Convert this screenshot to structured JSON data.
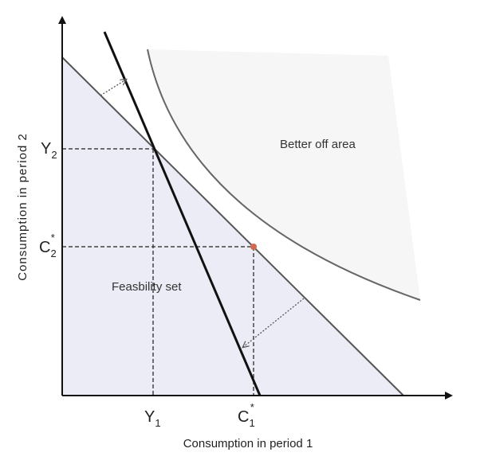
{
  "axes": {
    "x_title": "Consumption in period 1",
    "y_title": "Consumption in period 2"
  },
  "ticks": {
    "y2": "Y",
    "y2_sub": "2",
    "c2": "C",
    "c2_sub": "2",
    "c2_sup": "*",
    "y1": "Y",
    "y1_sub": "1",
    "c1": "C",
    "c1_sub": "1",
    "c1_sup": "*"
  },
  "regions": {
    "better_off": "Better off area",
    "feasibility": "Feasbility set"
  },
  "colors": {
    "feasible_fill": "#ececf6",
    "better_fill": "#f6f6f6",
    "optimum_point": "#d06a50"
  }
}
